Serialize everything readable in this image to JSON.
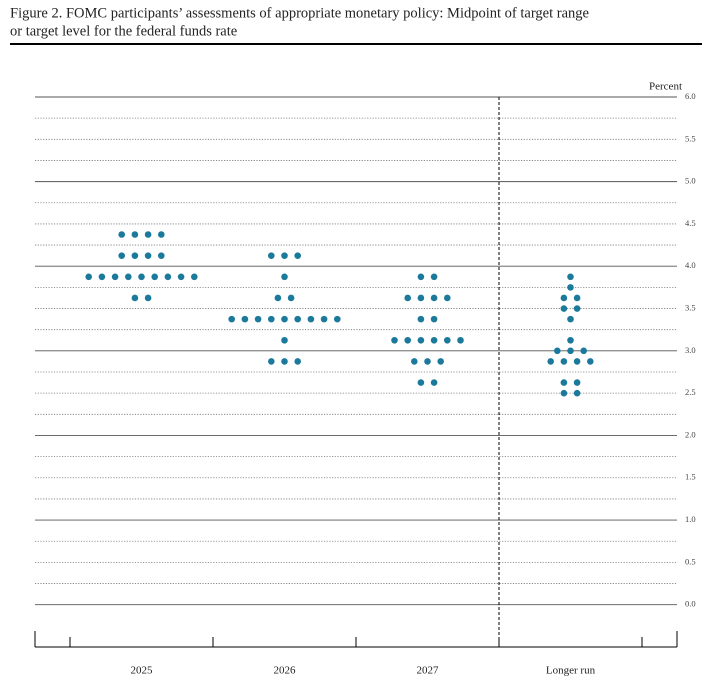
{
  "chart_data": {
    "type": "dot",
    "title_lines": [
      "Figure 2.  FOMC participants’ assessments of appropriate monetary policy: Midpoint of target range",
      "or target level for the federal funds rate"
    ],
    "y_label": "Percent",
    "categories": [
      "2025",
      "2026",
      "2027",
      "Longer run"
    ],
    "dots": [
      [
        4.375,
        4.375,
        4.375,
        4.375,
        4.125,
        4.125,
        4.125,
        4.125,
        3.875,
        3.875,
        3.875,
        3.875,
        3.875,
        3.875,
        3.875,
        3.875,
        3.875,
        3.625,
        3.625
      ],
      [
        4.125,
        4.125,
        4.125,
        3.875,
        3.625,
        3.625,
        3.375,
        3.375,
        3.375,
        3.375,
        3.375,
        3.375,
        3.375,
        3.375,
        3.375,
        3.125,
        2.875,
        2.875,
        2.875
      ],
      [
        3.875,
        3.875,
        3.625,
        3.625,
        3.625,
        3.625,
        3.375,
        3.375,
        3.125,
        3.125,
        3.125,
        3.125,
        3.125,
        3.125,
        2.875,
        2.875,
        2.875,
        2.625,
        2.625
      ],
      [
        3.875,
        3.75,
        3.625,
        3.625,
        3.5,
        3.5,
        3.375,
        3.125,
        3.0,
        3.0,
        3.0,
        2.875,
        2.875,
        2.875,
        2.875,
        2.625,
        2.625,
        2.5,
        2.5
      ]
    ],
    "color": "#1b7a9c",
    "ylim": [
      -0.5,
      6
    ],
    "yticks": [
      {
        "value": 0,
        "label": "0.0"
      },
      0.5,
      {
        "value": 1,
        "label": "1.0"
      },
      1.5,
      {
        "value": 2,
        "label": "2.0"
      },
      2.5,
      {
        "value": 3,
        "label": "3.0"
      },
      3.5,
      {
        "value": 4,
        "label": "4.0"
      },
      4.5,
      {
        "value": 5,
        "label": "5.0"
      },
      5.5,
      {
        "value": 6,
        "label": "6.0"
      }
    ],
    "grid": true
  }
}
